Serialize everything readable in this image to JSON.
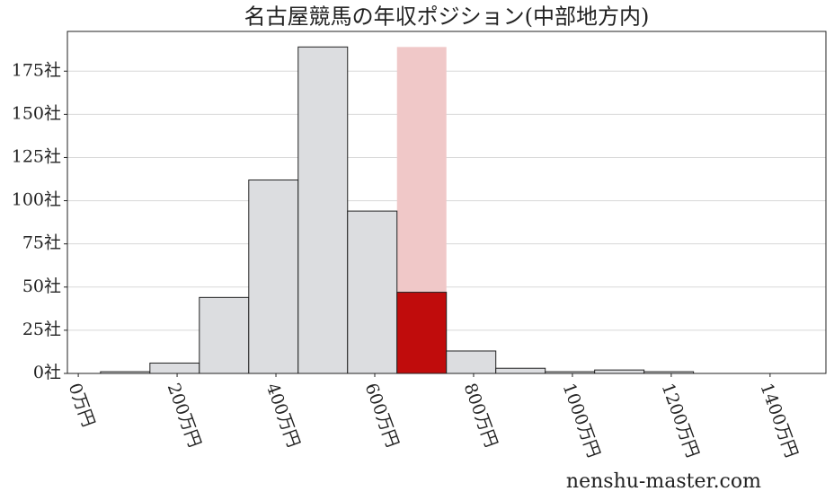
{
  "chart_data": {
    "type": "histogram",
    "title": "名古屋競馬の年収ポジション(中部地方内)",
    "bins": [
      45,
      145,
      245,
      345,
      445,
      545,
      645,
      745,
      845,
      945,
      1045,
      1145,
      1245
    ],
    "values": [
      1,
      6,
      44,
      112,
      189,
      94,
      47,
      13,
      3,
      1,
      2,
      1
    ],
    "color": "#dcdde0",
    "edge_color": "#222222",
    "highlight_index": 6,
    "highlight_color": "#c00c0c",
    "highlight_band_color": "#f0c8c8",
    "highlight_band_top": 189,
    "xlim": [
      -22,
      1513
    ],
    "ylim": [
      0,
      198
    ],
    "xticks": [
      {
        "value": 0,
        "label": "0万円"
      },
      {
        "value": 200,
        "label": "200万円"
      },
      {
        "value": 400,
        "label": "400万円"
      },
      {
        "value": 600,
        "label": "600万円"
      },
      {
        "value": 800,
        "label": "800万円"
      },
      {
        "value": 1000,
        "label": "1000万円"
      },
      {
        "value": 1200,
        "label": "1200万円"
      },
      {
        "value": 1400,
        "label": "1400万円"
      }
    ],
    "yticks": [
      {
        "value": 0,
        "label": "0社"
      },
      {
        "value": 25,
        "label": "25社"
      },
      {
        "value": 50,
        "label": "50社"
      },
      {
        "value": 75,
        "label": "75社"
      },
      {
        "value": 100,
        "label": "100社"
      },
      {
        "value": 125,
        "label": "125社"
      },
      {
        "value": 150,
        "label": "150社"
      },
      {
        "value": 175,
        "label": "175社"
      }
    ],
    "grid": true,
    "watermark": "nenshu-master.com"
  }
}
